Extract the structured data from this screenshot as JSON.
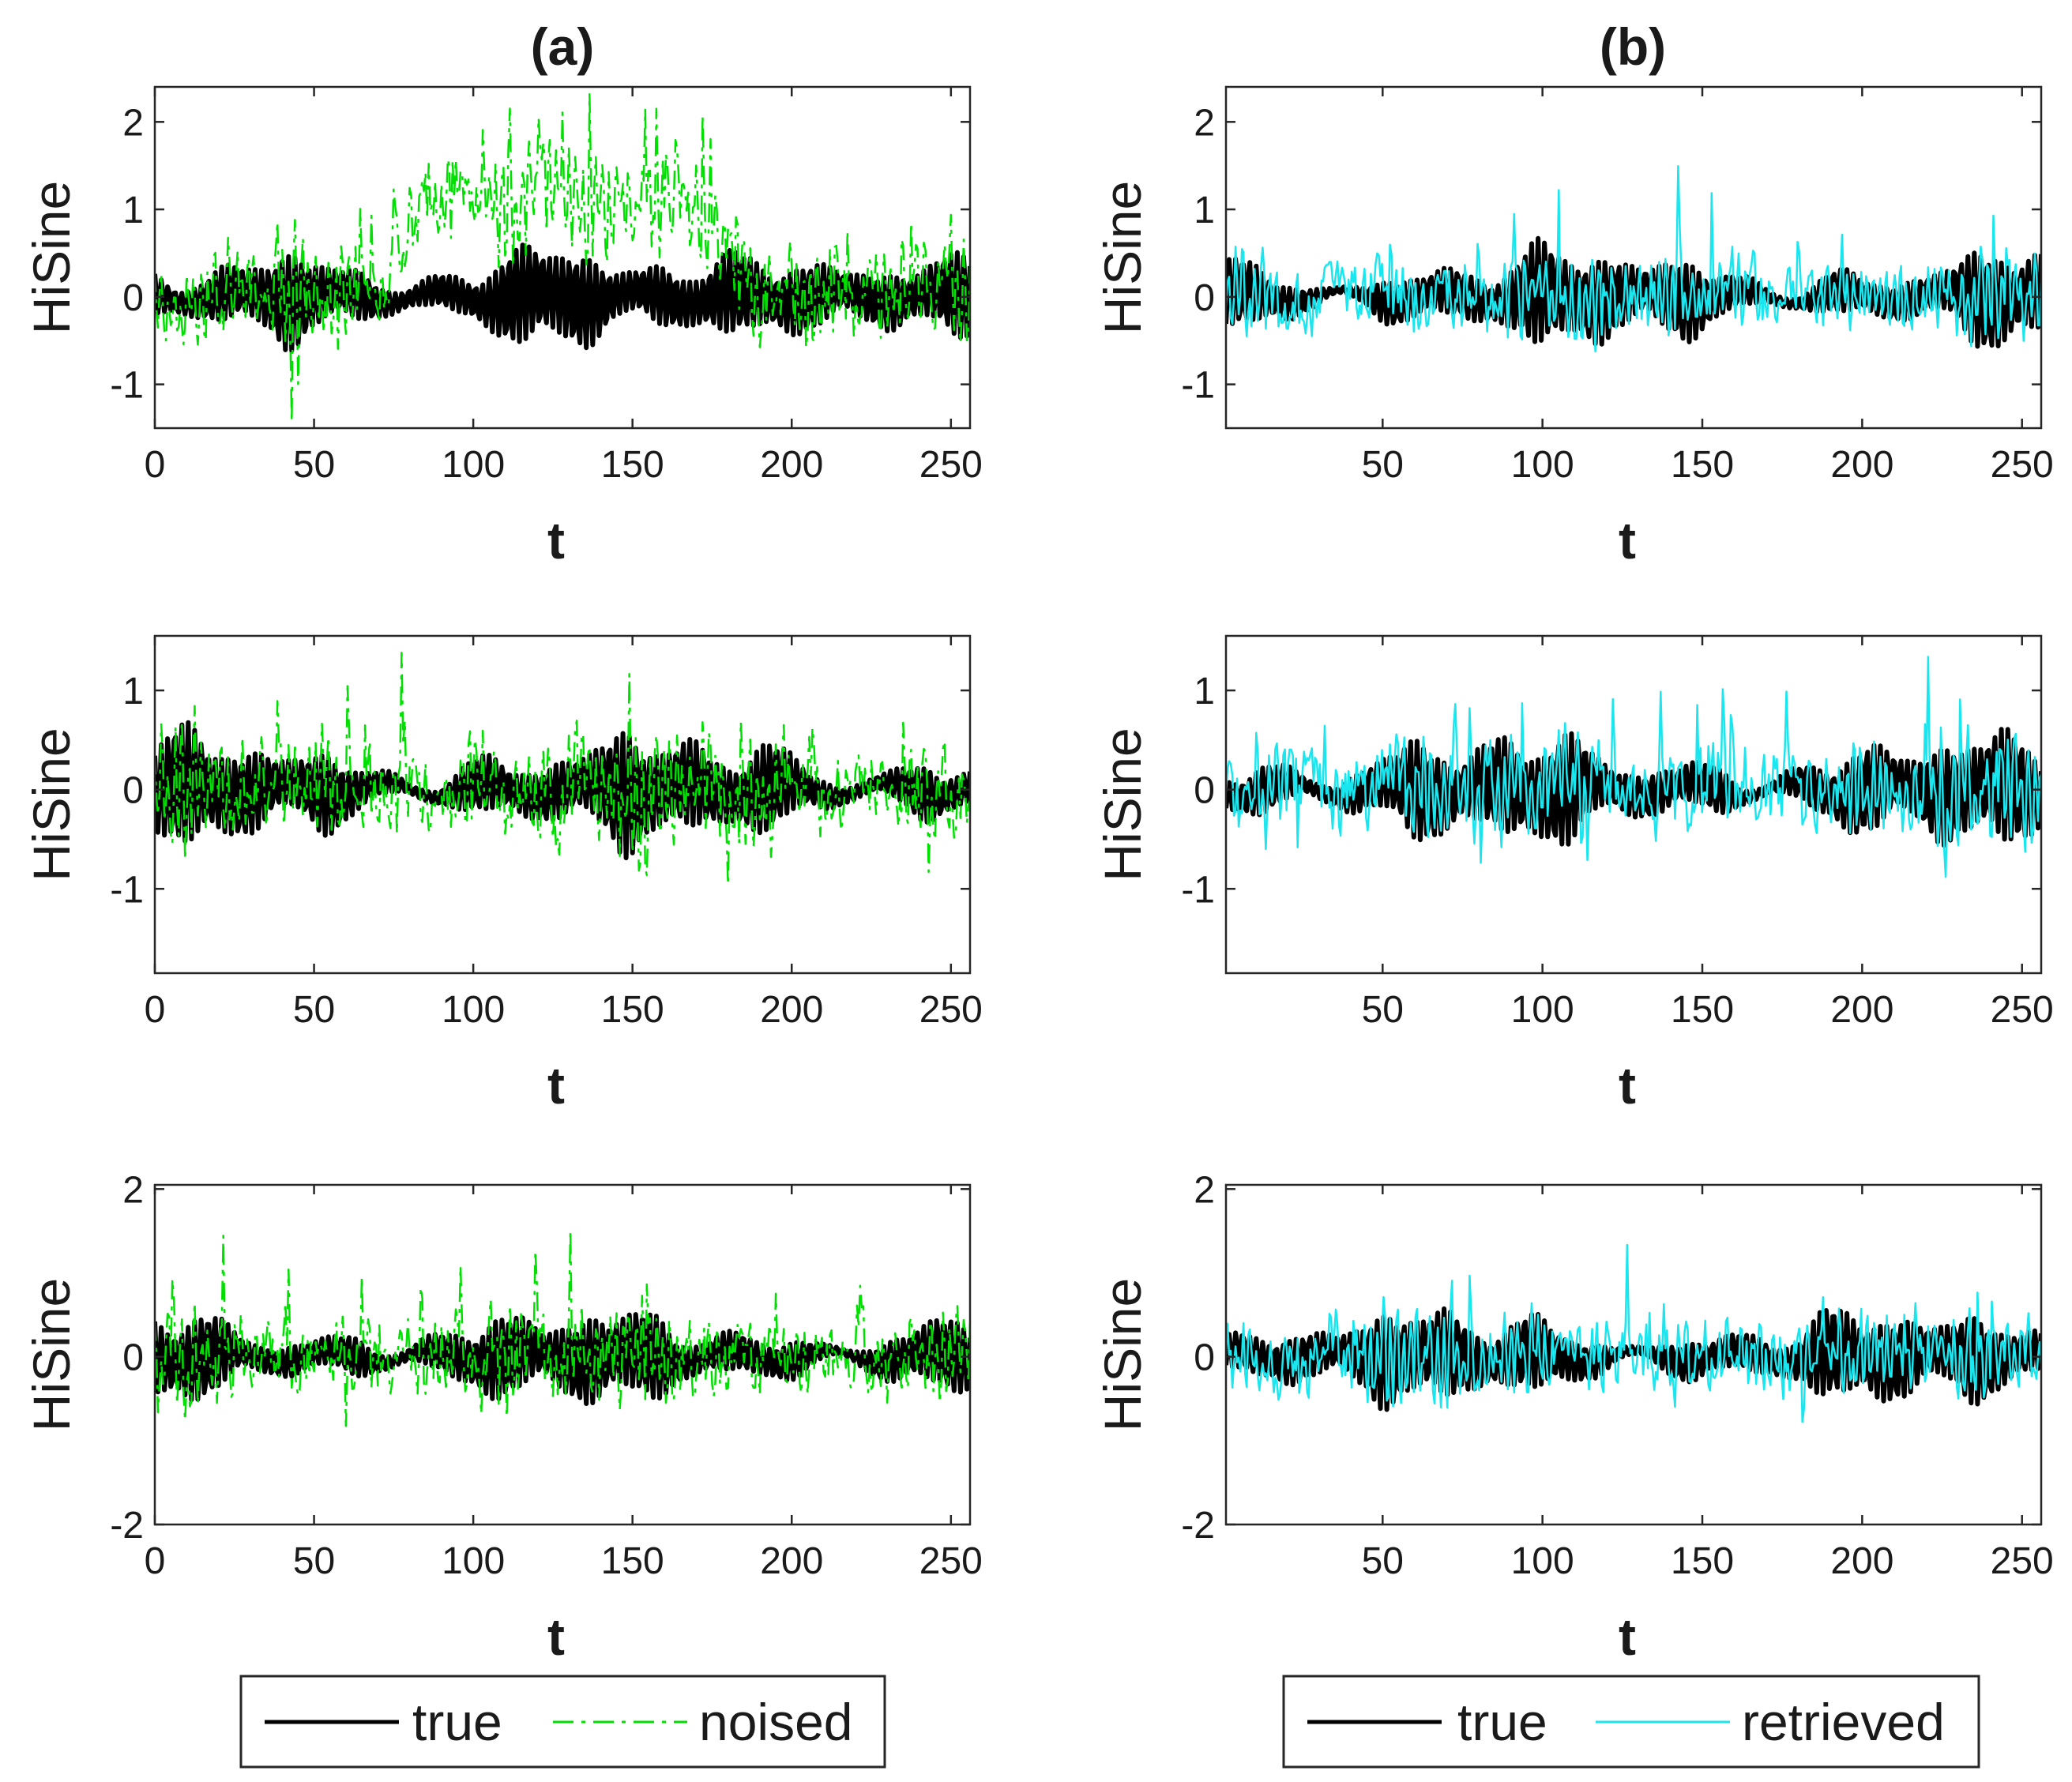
{
  "colors": {
    "true": "#000000",
    "noised": "#00e000",
    "retrieved": "#19e6ee",
    "axis": "#262626"
  },
  "columns": [
    {
      "title": "(a)",
      "series2_key": "noised"
    },
    {
      "title": "(b)",
      "series2_key": "retrieved"
    }
  ],
  "legends": [
    {
      "entries": [
        {
          "label": "true",
          "style": "solid",
          "color_key": "true"
        },
        {
          "label": "noised",
          "style": "dashdot",
          "color_key": "noised"
        }
      ]
    },
    {
      "entries": [
        {
          "label": "true",
          "style": "solid",
          "color_key": "true"
        },
        {
          "label": "retrieved",
          "style": "solid",
          "color_key": "retrieved"
        }
      ]
    }
  ],
  "chart_data": [
    {
      "panel": "row1-a",
      "type": "line",
      "title": "(a)",
      "xlabel": "t",
      "ylabel": "HiSine",
      "xlim": [
        0,
        256
      ],
      "ylim": [
        -1.5,
        2.4
      ],
      "xticks": [
        "0",
        "50",
        "100",
        "150",
        "200",
        "250"
      ],
      "yticks": [
        "-1",
        "0",
        "1",
        "2"
      ],
      "series": [
        {
          "name": "true",
          "amplitude_envelope": [
            0.25,
            0.2,
            0.3,
            0.45,
            0.55,
            0.5,
            0.3,
            0.2,
            0.15,
            0.2,
            0.35,
            0.55,
            0.7,
            0.55,
            0.4,
            0.3,
            0.35,
            0.45,
            0.5,
            0.45,
            0.4,
            0.35,
            0.3,
            0.35,
            0.45,
            0.5
          ]
        },
        {
          "name": "noised",
          "offset_envelope": [
            0,
            0,
            0,
            0.1,
            0.1,
            0,
            0.1,
            0.2,
            1.2,
            1.3,
            1.2,
            1.2,
            1.4,
            1.3,
            1.2,
            1.3,
            1.2,
            1.1,
            0.2,
            0.1,
            0,
            0,
            0.1,
            0.1,
            0.1,
            0.2
          ]
        }
      ]
    },
    {
      "panel": "row2-a",
      "type": "line",
      "title": "",
      "xlabel": "t",
      "ylabel": "HiSine",
      "xlim": [
        0,
        256
      ],
      "ylim": [
        -1.85,
        1.55
      ],
      "xticks": [
        "0",
        "50",
        "100",
        "150",
        "200",
        "250"
      ],
      "yticks": [
        "-1",
        "0",
        "1"
      ],
      "series": [
        {
          "name": "true"
        },
        {
          "name": "noised"
        }
      ]
    },
    {
      "panel": "row3-a",
      "type": "line",
      "title": "",
      "xlabel": "t",
      "ylabel": "HiSine",
      "xlim": [
        0,
        256
      ],
      "ylim": [
        -2,
        2.05
      ],
      "xticks": [
        "0",
        "50",
        "100",
        "150",
        "200",
        "250"
      ],
      "yticks": [
        "-2",
        "0",
        "2"
      ],
      "series": [
        {
          "name": "true"
        },
        {
          "name": "noised"
        }
      ]
    },
    {
      "panel": "row1-b",
      "type": "line",
      "title": "(b)",
      "xlabel": "t",
      "ylabel": "HiSine",
      "xlim": [
        1,
        256
      ],
      "ylim": [
        -1.5,
        2.4
      ],
      "xticks": [
        "50",
        "100",
        "150",
        "200",
        "250"
      ],
      "yticks": [
        "-1",
        "0",
        "1",
        "2"
      ],
      "series": [
        {
          "name": "true"
        },
        {
          "name": "retrieved"
        }
      ]
    },
    {
      "panel": "row2-b",
      "type": "line",
      "title": "",
      "xlabel": "t",
      "ylabel": "HiSine",
      "xlim": [
        1,
        256
      ],
      "ylim": [
        -1.85,
        1.55
      ],
      "xticks": [
        "50",
        "100",
        "150",
        "200",
        "250"
      ],
      "yticks": [
        "-1",
        "0",
        "1"
      ],
      "series": [
        {
          "name": "true"
        },
        {
          "name": "retrieved"
        }
      ]
    },
    {
      "panel": "row3-b",
      "type": "line",
      "title": "",
      "xlabel": "t",
      "ylabel": "HiSine",
      "xlim": [
        1,
        256
      ],
      "ylim": [
        -2,
        2.05
      ],
      "xticks": [
        "50",
        "100",
        "150",
        "200",
        "250"
      ],
      "yticks": [
        "-2",
        "0",
        "2"
      ],
      "series": [
        {
          "name": "true"
        },
        {
          "name": "retrieved"
        }
      ]
    }
  ]
}
